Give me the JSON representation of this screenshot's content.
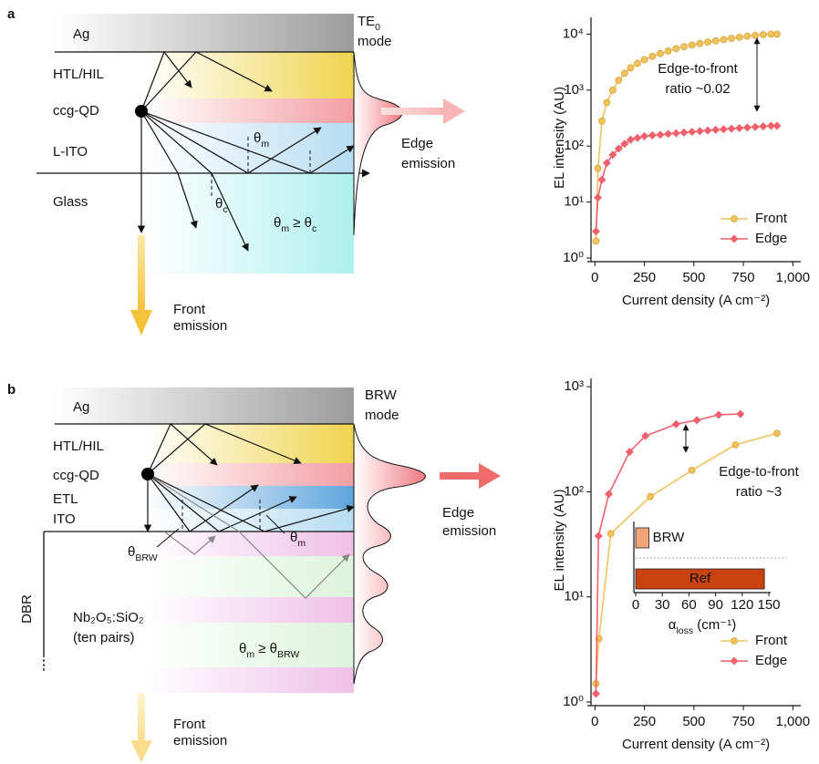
{
  "panel_labels": [
    "a",
    "b"
  ],
  "diagrams": [
    {
      "layers": [
        "Ag",
        "HTL/HIL",
        "ccg-QD",
        "L-ITO",
        "Glass"
      ],
      "mode": [
        {
          "text": "TE"
        },
        {
          "sub": "0"
        }
      ],
      "mode_line2": "mode",
      "edge_emission": [
        "Edge",
        "emission"
      ],
      "front_emission": [
        "Front",
        "emission"
      ],
      "angle_labels": [
        [
          {
            "text": "θ"
          },
          {
            "sub": "m"
          }
        ],
        [
          {
            "text": "θ"
          },
          {
            "sub": "c"
          }
        ]
      ],
      "condition": [
        {
          "text": "θ"
        },
        {
          "sub": "m"
        },
        {
          "text": " ≥ θ"
        },
        {
          "sub": "c"
        }
      ]
    },
    {
      "layers": [
        "Ag",
        "HTL/HIL",
        "ccg-QD",
        "ETL",
        "ITO"
      ],
      "mode": [
        {
          "text": "BRW"
        }
      ],
      "mode_line2": "mode",
      "edge_emission": [
        "Edge",
        "emission"
      ],
      "front_emission": [
        "Front",
        "emission"
      ],
      "angle_labels": [
        [
          {
            "text": "θ"
          },
          {
            "sub": "BRW"
          }
        ],
        [
          {
            "text": "θ"
          },
          {
            "sub": "m"
          }
        ]
      ],
      "condition": [
        {
          "text": "θ"
        },
        {
          "sub": "m"
        },
        {
          "text": " ≥ θ"
        },
        {
          "sub": "BRW"
        }
      ],
      "dbr": "DBR",
      "dbr_stack": [
        "Nb₂O₅:SiO₂",
        "(ten pairs)"
      ]
    }
  ],
  "chart_data": [
    {
      "type": "line",
      "yscale": "log",
      "xlabel": "Current density (A cm⁻²)",
      "ylabel": "EL intensity (AU)",
      "xlim": [
        -20,
        1040
      ],
      "ylim": [
        1,
        20000
      ],
      "xticks": [
        0,
        250,
        500,
        750,
        {
          "value": 1000,
          "label": "1,000"
        }
      ],
      "yticks": [
        {
          "value": 1,
          "label": "10⁰"
        },
        {
          "value": 10,
          "label": "10¹"
        },
        {
          "value": 100,
          "label": "10²"
        },
        {
          "value": 1000,
          "label": "10³"
        },
        {
          "value": 10000,
          "label": "10⁴"
        }
      ],
      "legend": "lower right",
      "annotation": [
        "Edge-to-front",
        "ratio ~0.02"
      ],
      "series": [
        {
          "name": "Front",
          "color": "#f2c25c",
          "marker": "circle",
          "x": [
            5,
            15,
            35,
            60,
            90,
            120,
            150,
            180,
            215,
            250,
            290,
            330,
            370,
            410,
            450,
            490,
            530,
            570,
            610,
            650,
            690,
            730,
            770,
            810,
            850,
            890,
            920
          ],
          "values": [
            2,
            40,
            280,
            600,
            1000,
            1500,
            2000,
            2500,
            3000,
            3500,
            4000,
            4500,
            5000,
            5500,
            6000,
            6400,
            6800,
            7200,
            7600,
            8000,
            8400,
            8800,
            9200,
            9500,
            9800,
            10000,
            10000
          ]
        },
        {
          "name": "Edge",
          "color": "#f0606c",
          "marker": "diamond",
          "x": [
            5,
            15,
            35,
            60,
            90,
            120,
            150,
            180,
            215,
            250,
            290,
            330,
            370,
            410,
            450,
            490,
            530,
            570,
            610,
            650,
            690,
            730,
            770,
            810,
            850,
            890,
            920
          ],
          "values": [
            3,
            12,
            25,
            50,
            70,
            90,
            110,
            130,
            140,
            150,
            155,
            160,
            165,
            170,
            175,
            180,
            185,
            190,
            195,
            200,
            205,
            210,
            215,
            220,
            225,
            230,
            230
          ]
        }
      ]
    },
    {
      "type": "line",
      "yscale": "log",
      "xlabel": "Current density (A cm⁻²)",
      "ylabel": "EL intensity (AU)",
      "xlim": [
        -20,
        1040
      ],
      "ylim": [
        1,
        1200
      ],
      "xticks": [
        0,
        250,
        500,
        750,
        {
          "value": 1000,
          "label": "1,000"
        }
      ],
      "yticks": [
        {
          "value": 1,
          "label": "10⁰"
        },
        {
          "value": 10,
          "label": "10¹"
        },
        {
          "value": 100,
          "label": "10²"
        },
        {
          "value": 1000,
          "label": "10³"
        }
      ],
      "legend": "lower right",
      "annotation": [
        "Edge-to-front",
        "ratio ~3"
      ],
      "series": [
        {
          "name": "Front",
          "color": "#f2c25c",
          "marker": "circle",
          "x": [
            5,
            20,
            80,
            280,
            490,
            710,
            920
          ],
          "values": [
            1.5,
            4,
            40,
            90,
            160,
            280,
            360
          ]
        },
        {
          "name": "Edge",
          "color": "#f0606c",
          "marker": "diamond",
          "x": [
            5,
            18,
            70,
            175,
            255,
            410,
            515,
            625,
            735
          ],
          "values": [
            1.2,
            38,
            95,
            240,
            340,
            440,
            480,
            540,
            550
          ]
        }
      ],
      "inset": {
        "type": "bar",
        "orientation": "horizontal",
        "categories": [
          "BRW",
          "Ref"
        ],
        "values": [
          15,
          145
        ],
        "colors": [
          "#f5a47a",
          "#c8430f"
        ],
        "xlim": [
          0,
          150
        ],
        "xticks": [
          0,
          30,
          60,
          90,
          120,
          150
        ],
        "xlabel": [
          {
            "text": "α"
          },
          {
            "sub": "loss"
          },
          {
            "text": " (cm⁻¹)"
          }
        ]
      }
    }
  ]
}
